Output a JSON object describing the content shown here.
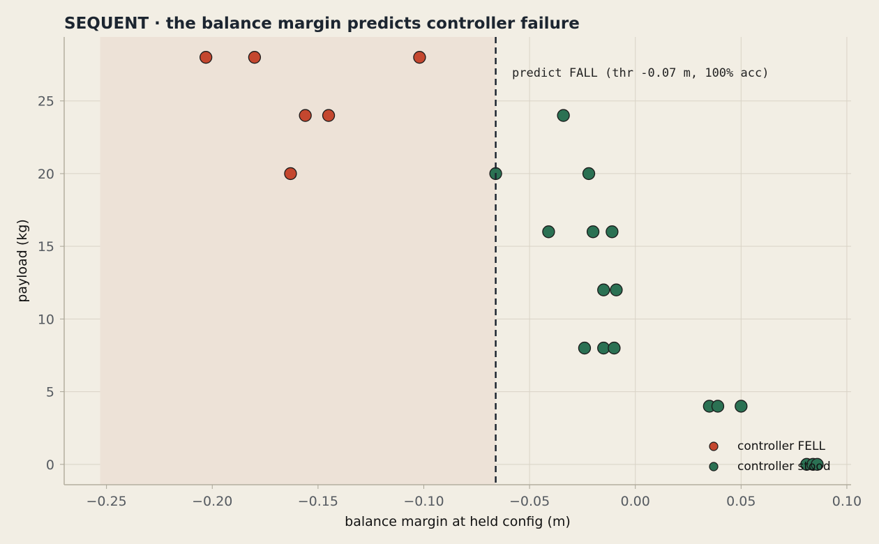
{
  "chart_data": {
    "type": "scatter",
    "title": "SEQUENT · the balance margin predicts controller failure",
    "xlabel": "balance margin at held config (m)",
    "ylabel": "payload (kg)",
    "xlim": [
      -0.27,
      0.102
    ],
    "ylim": [
      -1.4,
      29.4
    ],
    "xticks": [
      -0.25,
      -0.2,
      -0.15,
      -0.1,
      -0.05,
      0.0,
      0.05,
      0.1
    ],
    "xtick_labels": [
      "−0.25",
      "−0.20",
      "−0.15",
      "−0.10",
      "−0.05",
      "0.00",
      "0.05",
      "0.10"
    ],
    "yticks": [
      0,
      5,
      10,
      15,
      20,
      25
    ],
    "ytick_labels": [
      "0",
      "5",
      "10",
      "15",
      "20",
      "25"
    ],
    "grid": true,
    "threshold": -0.066,
    "fall_region": [
      -0.253,
      -0.066
    ],
    "annotation": "predict FALL  (thr -0.07 m, 100% acc)",
    "legend_position": "bottom-right",
    "colors": {
      "background": "#f2eee4",
      "fall_region": "#ede2d7",
      "fell": "#c4472f",
      "stood": "#2b7153",
      "threshold_line": "#1c2530"
    },
    "series": [
      {
        "name": "controller FELL",
        "color": "#c4472f",
        "points": [
          {
            "x": -0.203,
            "y": 28
          },
          {
            "x": -0.18,
            "y": 28
          },
          {
            "x": -0.102,
            "y": 28
          },
          {
            "x": -0.156,
            "y": 24
          },
          {
            "x": -0.145,
            "y": 24
          },
          {
            "x": -0.163,
            "y": 20
          }
        ]
      },
      {
        "name": "controller stood",
        "color": "#2b7153",
        "points": [
          {
            "x": -0.034,
            "y": 24
          },
          {
            "x": -0.066,
            "y": 20
          },
          {
            "x": -0.022,
            "y": 20
          },
          {
            "x": -0.041,
            "y": 16
          },
          {
            "x": -0.02,
            "y": 16
          },
          {
            "x": -0.011,
            "y": 16
          },
          {
            "x": -0.015,
            "y": 12
          },
          {
            "x": -0.009,
            "y": 12
          },
          {
            "x": -0.024,
            "y": 8
          },
          {
            "x": -0.015,
            "y": 8
          },
          {
            "x": -0.01,
            "y": 8
          },
          {
            "x": 0.035,
            "y": 4
          },
          {
            "x": 0.039,
            "y": 4
          },
          {
            "x": 0.05,
            "y": 4
          },
          {
            "x": 0.081,
            "y": 0
          },
          {
            "x": 0.084,
            "y": 0
          },
          {
            "x": 0.086,
            "y": 0
          }
        ]
      }
    ]
  }
}
